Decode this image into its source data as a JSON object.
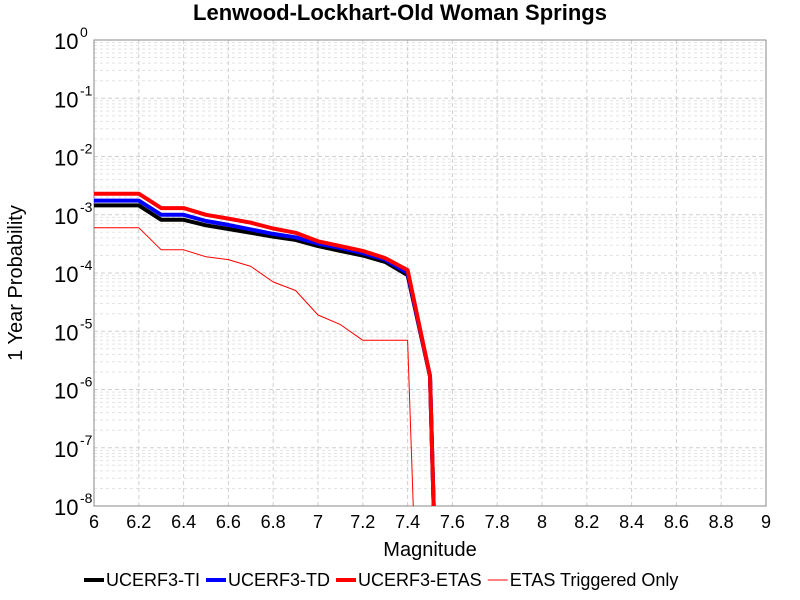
{
  "chart_data": {
    "type": "line",
    "title": "Lenwood-Lockhart-Old Woman Springs",
    "xlabel": "Magnitude",
    "ylabel": "1 Year Probability",
    "xlim": [
      6,
      9
    ],
    "ylim": [
      1e-08,
      1
    ],
    "yscale": "log",
    "grid": true,
    "legend_position": "bottom",
    "x_ticks": [
      "6",
      "6.2",
      "6.4",
      "6.6",
      "6.8",
      "7",
      "7.2",
      "7.4",
      "7.6",
      "7.8",
      "8",
      "8.2",
      "8.4",
      "8.6",
      "8.8",
      "9"
    ],
    "y_ticks": [
      {
        "base": "10",
        "exp": "0",
        "value": 1
      },
      {
        "base": "10",
        "exp": "-1",
        "value": 0.1
      },
      {
        "base": "10",
        "exp": "-2",
        "value": 0.01
      },
      {
        "base": "10",
        "exp": "-3",
        "value": 0.001
      },
      {
        "base": "10",
        "exp": "-4",
        "value": 0.0001
      },
      {
        "base": "10",
        "exp": "-5",
        "value": 1e-05
      },
      {
        "base": "10",
        "exp": "-6",
        "value": 1e-06
      },
      {
        "base": "10",
        "exp": "-7",
        "value": 1e-07
      },
      {
        "base": "10",
        "exp": "-8",
        "value": 1e-08
      }
    ],
    "series": [
      {
        "name": "UCERF3-TI",
        "color": "#000000",
        "width": 4,
        "x": [
          6.0,
          6.2,
          6.3,
          6.4,
          6.5,
          6.6,
          6.7,
          6.8,
          6.9,
          7.0,
          7.1,
          7.2,
          7.3,
          7.4,
          7.5,
          7.52
        ],
        "y": [
          0.00145,
          0.00145,
          0.00082,
          0.00082,
          0.00066,
          0.00057,
          0.00049,
          0.00042,
          0.00037,
          0.00029,
          0.00024,
          0.0002,
          0.000155,
          9.2e-05,
          1.7e-06,
          3e-09
        ]
      },
      {
        "name": "UCERF3-TD",
        "color": "#0000ff",
        "width": 4,
        "x": [
          6.0,
          6.2,
          6.3,
          6.4,
          6.5,
          6.6,
          6.7,
          6.8,
          6.9,
          7.0,
          7.1,
          7.2,
          7.3,
          7.4,
          7.5,
          7.52
        ],
        "y": [
          0.00175,
          0.00175,
          0.001,
          0.001,
          0.00078,
          0.00067,
          0.00056,
          0.00047,
          0.00041,
          0.00032,
          0.00027,
          0.00022,
          0.00017,
          0.0001,
          1.7e-06,
          3e-09
        ]
      },
      {
        "name": "UCERF3-ETAS",
        "color": "#ff0000",
        "width": 4,
        "x": [
          6.0,
          6.2,
          6.3,
          6.4,
          6.5,
          6.6,
          6.7,
          6.8,
          6.9,
          7.0,
          7.1,
          7.2,
          7.3,
          7.4,
          7.5,
          7.52
        ],
        "y": [
          0.0023,
          0.0023,
          0.0013,
          0.0013,
          0.001,
          0.00086,
          0.00073,
          0.00058,
          0.00049,
          0.00035,
          0.00029,
          0.00024,
          0.00018,
          0.000112,
          1.7e-06,
          3e-09
        ]
      },
      {
        "name": "ETAS Triggered Only",
        "color": "#ff0000",
        "width": 1,
        "x": [
          6.0,
          6.2,
          6.3,
          6.4,
          6.5,
          6.6,
          6.7,
          6.8,
          6.9,
          7.0,
          7.1,
          7.2,
          7.3,
          7.4,
          7.43
        ],
        "y": [
          0.0006,
          0.0006,
          0.00025,
          0.00025,
          0.00019,
          0.00017,
          0.00013,
          7e-05,
          5e-05,
          1.9e-05,
          1.3e-05,
          7e-06,
          7e-06,
          7e-06,
          3e-09
        ]
      }
    ]
  }
}
